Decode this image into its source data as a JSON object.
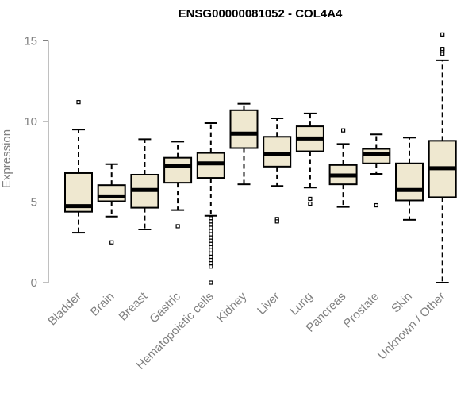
{
  "chart_data": {
    "type": "boxplot",
    "title": "ENSG00000081052 - COL4A4",
    "xlabel": "",
    "ylabel": "Expression",
    "ylim": [
      0,
      15.5
    ],
    "yticks": [
      0,
      5,
      10,
      15
    ],
    "grid": false,
    "colors": {
      "box_fill": "#efe8d0",
      "stroke": "#000000",
      "axis": "#808080",
      "title": "#000000"
    },
    "categories": [
      "Bladder",
      "Brain",
      "Breast",
      "Gastric",
      "Hematopoietic cells",
      "Kidney",
      "Liver",
      "Lung",
      "Pancreas",
      "Prostate",
      "Skin",
      "Unknown / Other"
    ],
    "boxes": [
      {
        "category": "Bladder",
        "whisker_low": 3.1,
        "q1": 4.4,
        "median": 4.75,
        "q3": 6.8,
        "whisker_high": 9.5,
        "outliers": [
          11.2
        ]
      },
      {
        "category": "Brain",
        "whisker_low": 4.1,
        "q1": 5.05,
        "median": 5.35,
        "q3": 6.05,
        "whisker_high": 7.35,
        "outliers": [
          2.5
        ]
      },
      {
        "category": "Breast",
        "whisker_low": 3.3,
        "q1": 4.65,
        "median": 5.75,
        "q3": 6.7,
        "whisker_high": 8.9,
        "outliers": []
      },
      {
        "category": "Gastric",
        "whisker_low": 4.5,
        "q1": 6.2,
        "median": 7.25,
        "q3": 7.75,
        "whisker_high": 8.75,
        "outliers": [
          3.5
        ]
      },
      {
        "category": "Hematopoietic cells",
        "whisker_low": 4.15,
        "q1": 6.5,
        "median": 7.4,
        "q3": 8.05,
        "whisker_high": 9.9,
        "outliers": [
          4.0,
          3.8,
          3.6,
          3.4,
          3.2,
          3.0,
          2.8,
          2.6,
          2.4,
          2.2,
          2.0,
          1.8,
          1.6,
          1.4,
          1.2,
          1.0,
          0.0
        ]
      },
      {
        "category": "Kidney",
        "whisker_low": 6.1,
        "q1": 8.35,
        "median": 9.25,
        "q3": 10.7,
        "whisker_high": 11.1,
        "outliers": []
      },
      {
        "category": "Liver",
        "whisker_low": 6.0,
        "q1": 7.2,
        "median": 8.0,
        "q3": 9.05,
        "whisker_high": 10.2,
        "outliers": [
          3.95,
          3.8
        ]
      },
      {
        "category": "Lung",
        "whisker_low": 5.9,
        "q1": 8.15,
        "median": 8.95,
        "q3": 9.7,
        "whisker_high": 10.5,
        "outliers": [
          5.2,
          4.9
        ]
      },
      {
        "category": "Pancreas",
        "whisker_low": 4.7,
        "q1": 6.1,
        "median": 6.65,
        "q3": 7.3,
        "whisker_high": 8.6,
        "outliers": [
          9.45
        ]
      },
      {
        "category": "Prostate",
        "whisker_low": 6.75,
        "q1": 7.4,
        "median": 8.0,
        "q3": 8.3,
        "whisker_high": 9.2,
        "outliers": [
          4.8
        ]
      },
      {
        "category": "Skin",
        "whisker_low": 3.9,
        "q1": 5.1,
        "median": 5.75,
        "q3": 7.4,
        "whisker_high": 9.0,
        "outliers": []
      },
      {
        "category": "Unknown / Other",
        "whisker_low": 0.0,
        "q1": 5.3,
        "median": 7.1,
        "q3": 8.8,
        "whisker_high": 13.8,
        "outliers": [
          14.2,
          14.4,
          14.5,
          15.4
        ]
      }
    ]
  }
}
